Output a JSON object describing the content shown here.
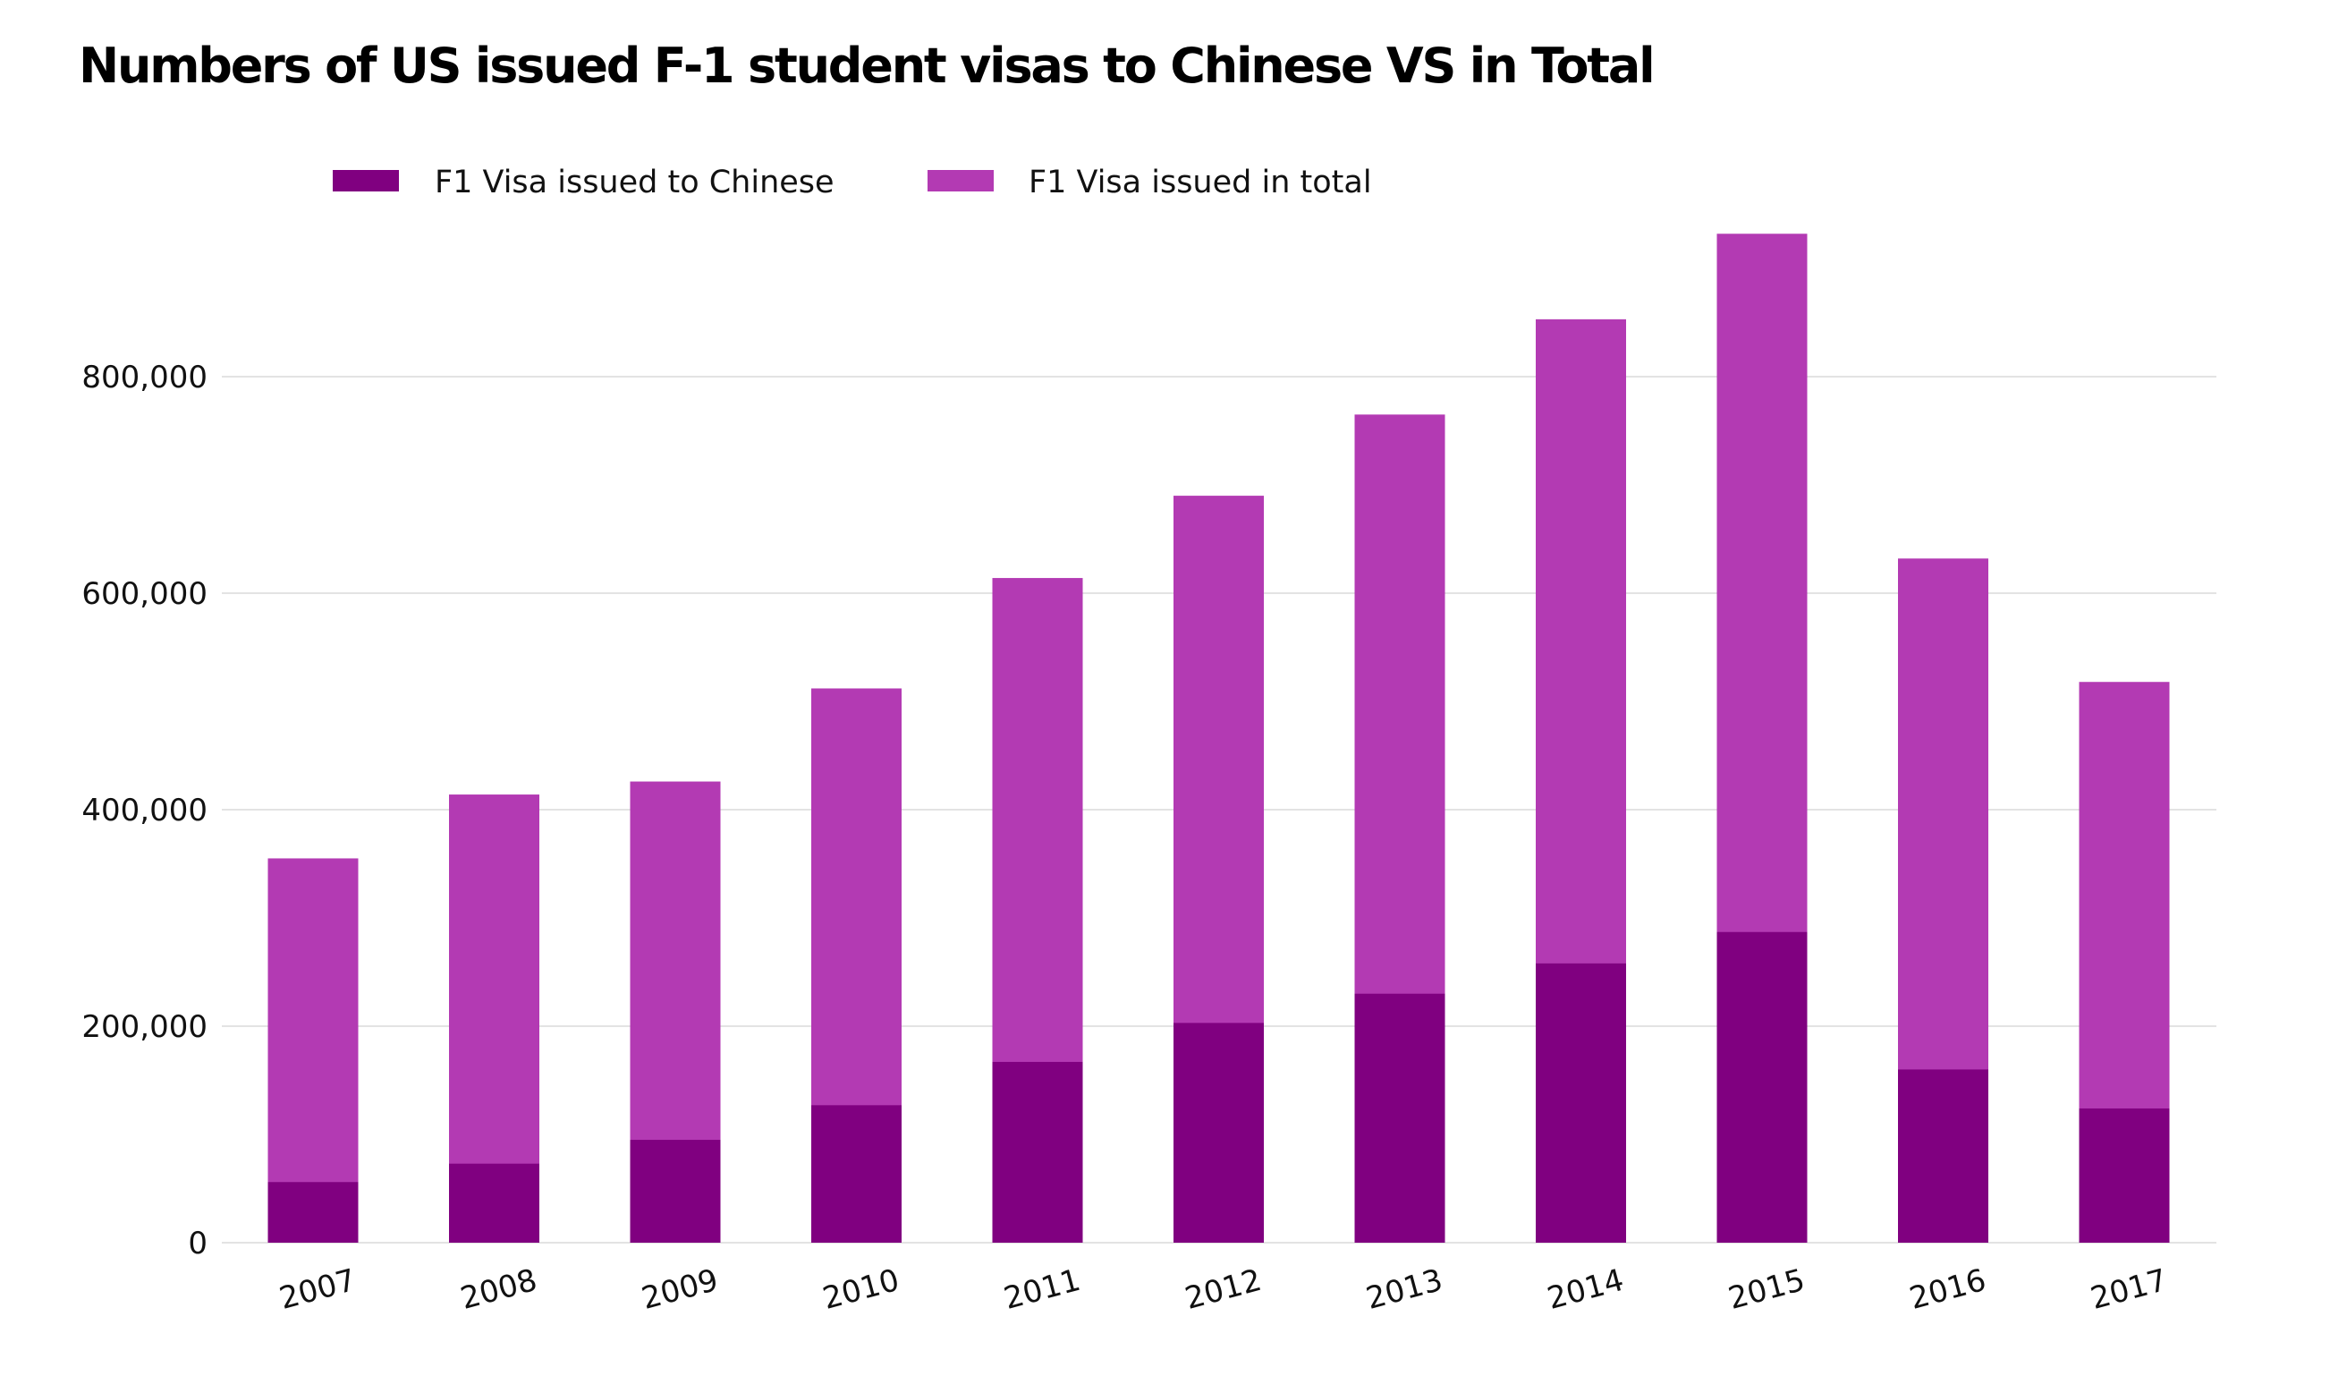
{
  "chart_data": {
    "type": "bar",
    "stacked": false,
    "overlapping": true,
    "title": "Numbers of US issued F-1 student visas to Chinese VS  in Total",
    "xlabel": "",
    "ylabel": "",
    "categories": [
      "2007",
      "2008",
      "2009",
      "2010",
      "2011",
      "2012",
      "2013",
      "2014",
      "2015",
      "2016",
      "2017"
    ],
    "series": [
      {
        "name": "F1 Visa issued to Chinese",
        "color": "#800080",
        "values": [
          56000,
          73000,
          95000,
          127000,
          167000,
          203000,
          230000,
          258000,
          287000,
          160000,
          124000
        ]
      },
      {
        "name": "F1 Visa issued in total",
        "color": "#b33ab3",
        "values": [
          355000,
          414000,
          426000,
          512000,
          614000,
          690000,
          765000,
          853000,
          932000,
          632000,
          518000
        ]
      }
    ],
    "ylim": [
      0,
      960000
    ],
    "yticks": [
      0,
      200000,
      400000,
      600000,
      800000
    ],
    "ytick_labels": [
      "0",
      "200,000",
      "400,000",
      "600,000",
      "800,000"
    ],
    "grid": true,
    "legend": "top-left"
  }
}
